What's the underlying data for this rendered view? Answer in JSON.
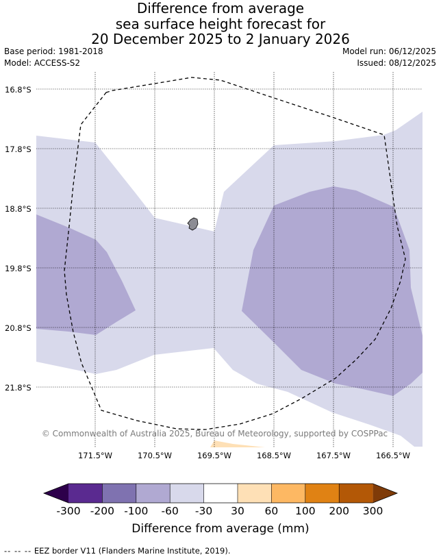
{
  "title": {
    "line1": "Difference from average",
    "line2": "sea surface height forecast for",
    "line3": "20 December 2025 to 2 January 2026"
  },
  "meta": {
    "base_period": "Base period: 1981-2018",
    "model": "Model: ACCESS-S2",
    "model_run": "Model run: 06/12/2025",
    "issued": "Issued: 08/12/2025"
  },
  "map": {
    "latitude_labels": [
      "16.8°S",
      "17.8°S",
      "18.8°S",
      "19.8°S",
      "20.8°S",
      "21.8°S"
    ],
    "longitude_labels": [
      "171.5°W",
      "170.5°W",
      "169.5°W",
      "168.5°W",
      "167.5°W",
      "166.5°W"
    ],
    "attribution": "© Commonwealth of Australia 2025, Bureau of Meteorology, supported by COSPPac",
    "colors": {
      "band_minus60_minus30": "#d8d9eb",
      "band_minus100_minus60": "#b0a9d2",
      "band_30_60": "#fee0b6",
      "land": "#8c8c94",
      "gridline": "#000000",
      "eez_border": "#000000"
    }
  },
  "colorbar": {
    "tick_labels": [
      "-300",
      "-200",
      "-100",
      "-60",
      "-30",
      "30",
      "60",
      "100",
      "200",
      "300"
    ],
    "segment_colors": [
      "#5a2a90",
      "#7f72b0",
      "#b0a9d2",
      "#d8d9eb",
      "#ffffff",
      "#fee0b6",
      "#fdb863",
      "#e08214",
      "#b35806"
    ],
    "under_color": "#2d004b",
    "over_color": "#7f3b08",
    "label": "Difference from average (mm)"
  },
  "footnote": {
    "dashes": "-- -- --",
    "text": "EEZ border V11 (Flanders Marine Institute, 2019)."
  }
}
